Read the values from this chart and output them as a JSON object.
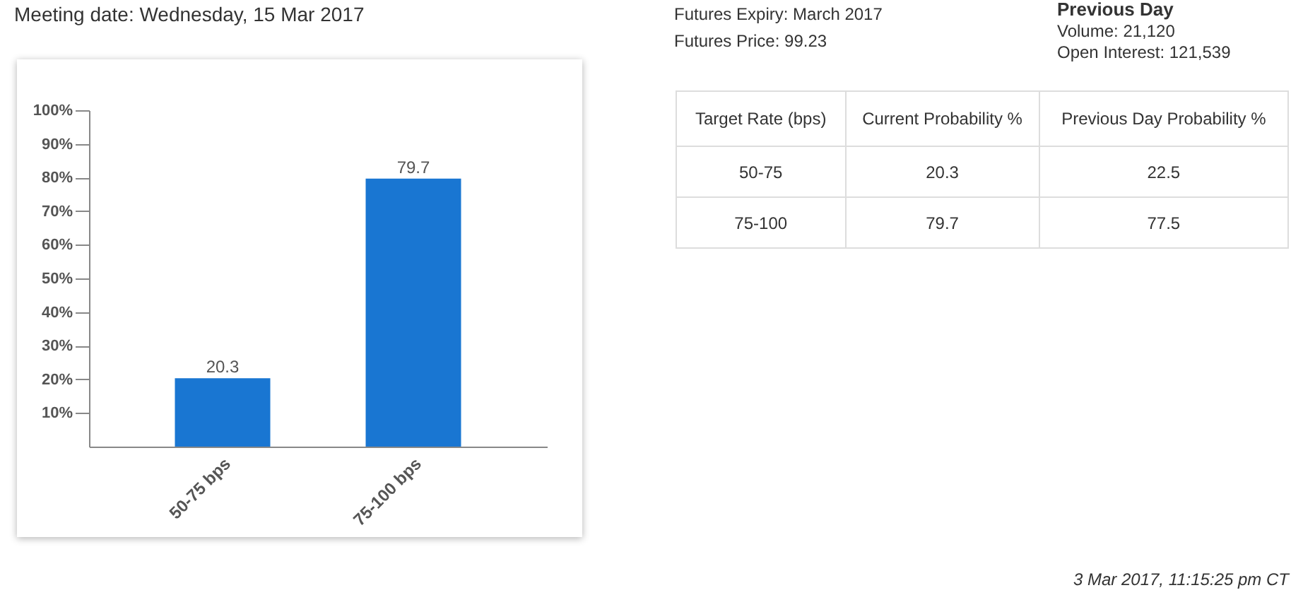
{
  "chart_data": [
    {
      "type": "bar",
      "title": "Meeting date: Wednesday, 15 Mar 2017",
      "categories": [
        "50-75 bps",
        "75-100 bps"
      ],
      "values": [
        20.3,
        79.7
      ],
      "color": "#1976d2",
      "ylim": [
        0,
        100
      ],
      "yticks": [
        {
          "value": 10,
          "label": "10%"
        },
        {
          "value": 20,
          "label": "20%"
        },
        {
          "value": 30,
          "label": "30%"
        },
        {
          "value": 40,
          "label": "40%"
        },
        {
          "value": 50,
          "label": "50%"
        },
        {
          "value": 60,
          "label": "60%"
        },
        {
          "value": 70,
          "label": "70%"
        },
        {
          "value": 80,
          "label": "80%"
        },
        {
          "value": 90,
          "label": "90%"
        },
        {
          "value": 100,
          "label": "100%"
        }
      ],
      "data_labels": true,
      "grid": false,
      "annotations": [
        "3 Mar 2017, 11:15:25 pm CT"
      ]
    },
    {
      "type": "other",
      "xlabel": "Target Rate (bps)",
      "categories": [
        "50-75",
        "75-100"
      ],
      "series": [
        {
          "name": "Current Probability %",
          "values": [
            20.3,
            79.7
          ]
        },
        {
          "name": "Previous Day Probability %",
          "values": [
            22.5,
            77.5
          ]
        }
      ],
      "data_labels": true,
      "annotations": [
        "Futures Expiry: March 2017",
        "Futures Price: 99.23",
        "Previous Day",
        "Volume: 21,120",
        "Open Interest: 121,539"
      ]
    }
  ]
}
